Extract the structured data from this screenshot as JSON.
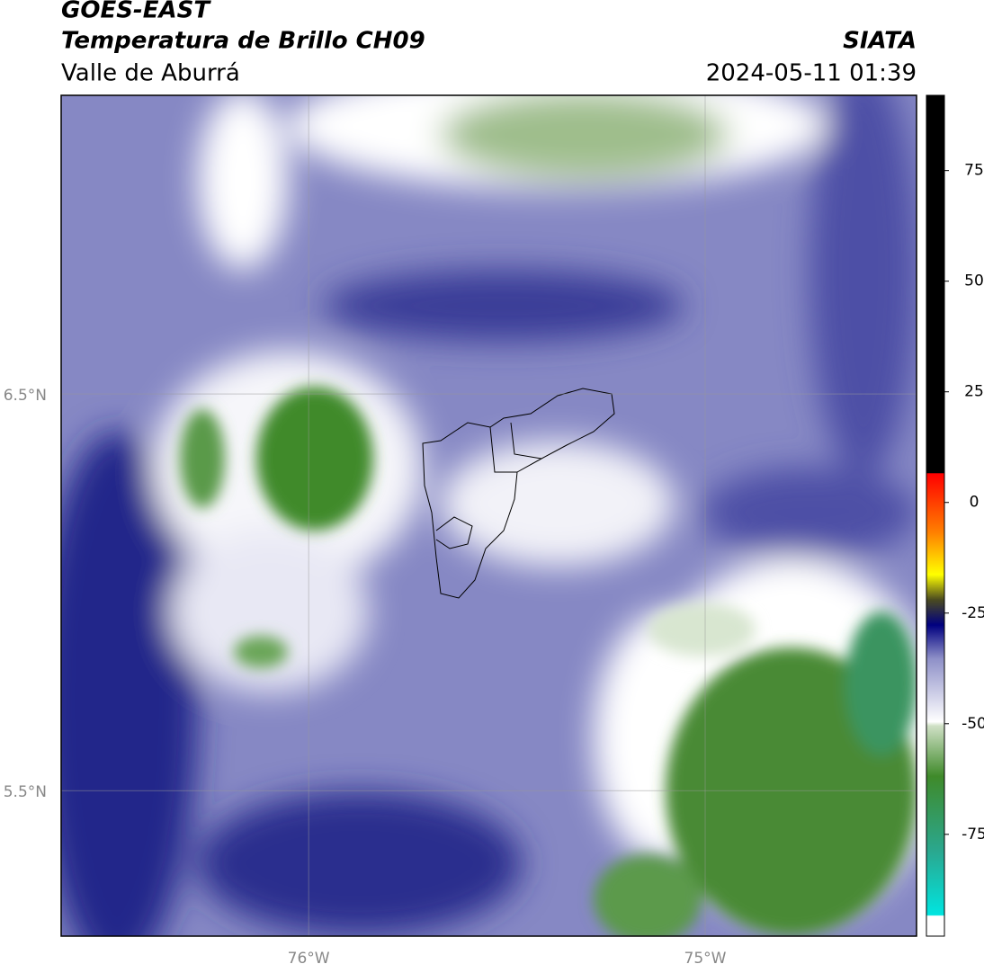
{
  "header": {
    "title": "GOES-EAST",
    "subtitle": "Temperatura de Brillo CH09",
    "region": "Valle de Aburrá",
    "source": "SIATA",
    "datetime": "2024-05-11 01:39"
  },
  "map": {
    "xlim": [
      -76.624,
      -74.467
    ],
    "ylim": [
      5.133,
      7.253
    ],
    "xticks": [
      {
        "value": -76,
        "label": "76°W"
      },
      {
        "value": -75,
        "label": "75°W"
      }
    ],
    "yticks": [
      {
        "value": 5.5,
        "label": "5.5°N"
      },
      {
        "value": 6.5,
        "label": "6.5°N"
      }
    ]
  },
  "colorbar": {
    "lim": [
      -98,
      92
    ],
    "ticks": [
      -75,
      -50,
      -25,
      0,
      25,
      50,
      75
    ]
  }
}
